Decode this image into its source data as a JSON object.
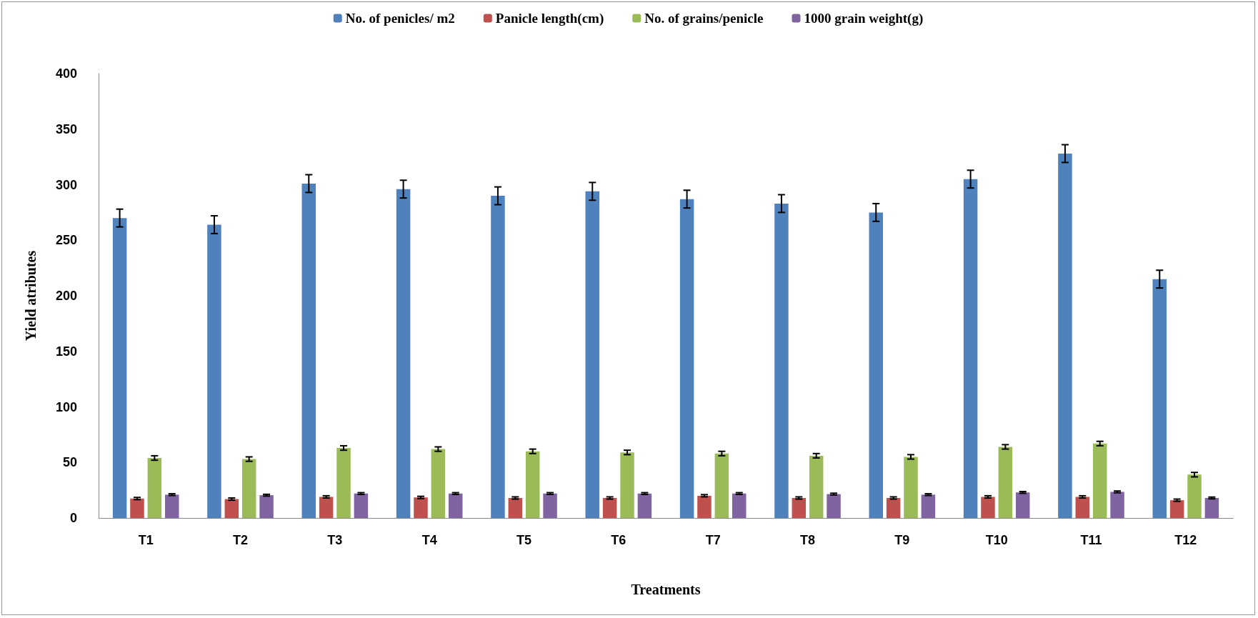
{
  "chart_data": {
    "type": "bar",
    "xlabel": "Treatments",
    "ylabel": "Yield atributes",
    "categories": [
      "T1",
      "T2",
      "T3",
      "T4",
      "T5",
      "T6",
      "T7",
      "T8",
      "T9",
      "T10",
      "T11",
      "T12"
    ],
    "series": [
      {
        "name": "No. of penicles/ m2",
        "color": "#4f81bd",
        "values": [
          270,
          264,
          301,
          296,
          290,
          294,
          287,
          283,
          275,
          305,
          328,
          215
        ],
        "errors": [
          8,
          8,
          8,
          8,
          8,
          8,
          8,
          8,
          8,
          8,
          8,
          8
        ]
      },
      {
        "name": "Panicle length(cm)",
        "color": "#c0504d",
        "values": [
          17.5,
          17,
          19,
          18.5,
          18,
          18,
          20,
          18,
          18,
          19,
          19,
          16
        ],
        "errors": [
          1,
          1,
          1,
          1,
          1,
          1,
          1,
          1,
          1,
          1,
          1,
          1
        ]
      },
      {
        "name": "No. of grains/penicle",
        "color": "#9bbb59",
        "values": [
          54,
          53,
          63,
          62,
          60,
          59,
          58,
          56,
          55,
          64,
          67,
          39
        ],
        "errors": [
          2,
          2,
          2,
          2,
          2,
          2,
          2,
          2,
          2,
          2,
          2,
          2
        ]
      },
      {
        "name": "1000 grain weight(g)",
        "color": "#8064a2",
        "values": [
          21,
          20.5,
          22,
          22,
          22,
          22,
          22,
          21.5,
          21,
          23,
          23.5,
          18
        ],
        "errors": [
          0.8,
          0.8,
          0.8,
          0.8,
          0.8,
          0.8,
          0.8,
          0.8,
          0.8,
          0.8,
          0.8,
          0.8
        ]
      }
    ],
    "ylim": [
      0,
      400
    ],
    "yticks": [
      0,
      50,
      100,
      150,
      200,
      250,
      300,
      350,
      400
    ],
    "grid": false,
    "legend": "top"
  }
}
